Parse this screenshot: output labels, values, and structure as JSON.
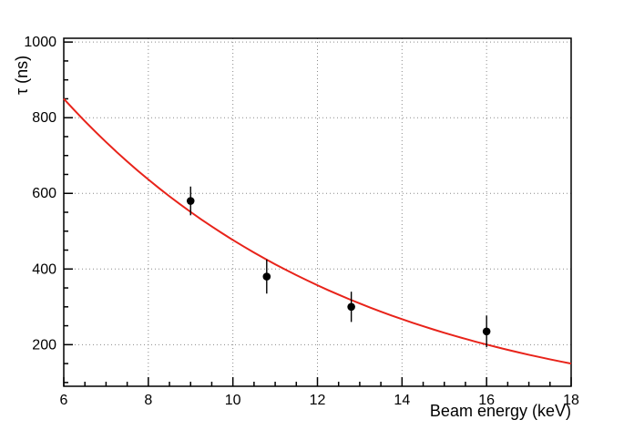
{
  "chart_data": {
    "type": "scatter",
    "title": "",
    "xlabel": "Beam energy (keV)",
    "ylabel": "τ (ns)",
    "xlim": [
      6,
      18
    ],
    "ylim": [
      90,
      1010
    ],
    "xticks": [
      6,
      8,
      10,
      12,
      14,
      16,
      18
    ],
    "yticks": [
      200,
      400,
      600,
      800,
      1000
    ],
    "x_minor_step": 0.5,
    "y_minor_step": 50,
    "grid": "dotted",
    "grid_color": "#8a8a8a",
    "frame_color": "#000000",
    "series": [
      {
        "name": "fit-curve",
        "type": "line",
        "color": "#e8231a",
        "width": 2,
        "x": [
          6,
          6.25,
          6.5,
          6.75,
          7,
          7.25,
          7.5,
          7.75,
          8,
          8.25,
          8.5,
          8.75,
          9,
          9.25,
          9.5,
          9.75,
          10,
          10.25,
          10.5,
          10.75,
          11,
          11.25,
          11.5,
          11.75,
          12,
          12.25,
          12.5,
          12.75,
          13,
          13.25,
          13.5,
          13.75,
          14,
          14.25,
          14.5,
          14.75,
          15,
          15.25,
          15.5,
          15.75,
          16,
          16.25,
          16.5,
          16.75,
          17,
          17.25,
          17.5,
          17.75,
          18
        ],
        "y": [
          850.0,
          819.8,
          790.7,
          762.6,
          735.6,
          709.4,
          684.3,
          660.0,
          636.6,
          614.0,
          592.2,
          571.2,
          550.9,
          531.3,
          512.5,
          494.3,
          476.7,
          459.8,
          443.5,
          427.7,
          412.5,
          397.9,
          383.8,
          370.2,
          357.0,
          344.3,
          332.1,
          320.3,
          309.0,
          298.0,
          287.4,
          277.2,
          267.4,
          257.9,
          248.7,
          239.9,
          231.4,
          223.2,
          215.3,
          207.6,
          200.3,
          193.2,
          186.3,
          179.7,
          173.3,
          167.2,
          161.2,
          155.5,
          150.0
        ]
      },
      {
        "name": "measured-points",
        "type": "scatter",
        "color": "#000000",
        "marker": "circle",
        "x": [
          9.0,
          10.8,
          12.8,
          16.0
        ],
        "y": [
          580,
          380,
          300,
          235
        ],
        "yerr": [
          38,
          45,
          40,
          42
        ]
      }
    ]
  }
}
